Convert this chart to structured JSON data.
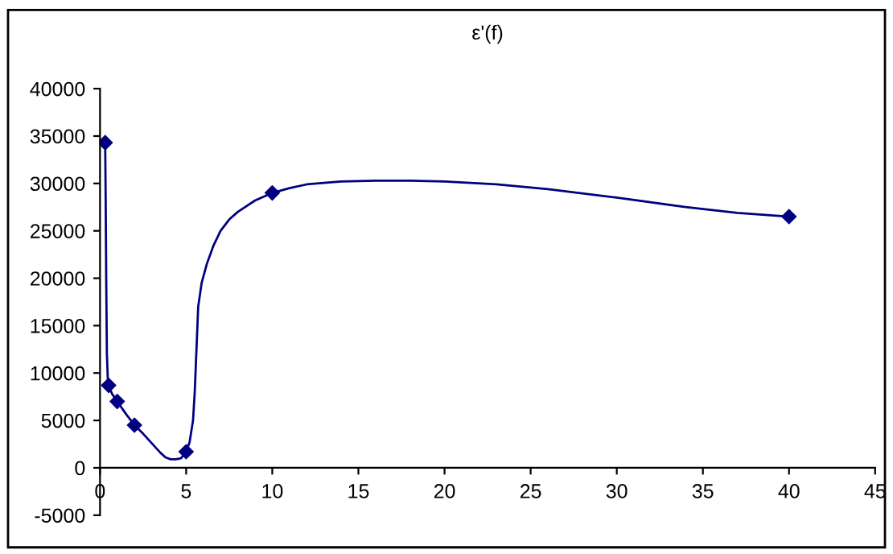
{
  "chart_data": {
    "type": "line",
    "title": "ε'(f)",
    "series": [
      {
        "color": "#000080",
        "marker": "none",
        "x": [
          0.3,
          0.33,
          0.36,
          0.4,
          0.45,
          0.5,
          0.7,
          1,
          1.5,
          2,
          2.5,
          3,
          3.5,
          3.8,
          4.1,
          4.4,
          4.7,
          5,
          5.2,
          5.4,
          5.5,
          5.6,
          5.7,
          5.9,
          6.2,
          6.6,
          7,
          7.5,
          8,
          9,
          10,
          11,
          12,
          14,
          16,
          18,
          20,
          23,
          26,
          30,
          34,
          37,
          40
        ],
        "values": [
          34300,
          28000,
          20000,
          12000,
          9500,
          8700,
          7800,
          7000,
          5700,
          4500,
          3600,
          2600,
          1600,
          1100,
          900,
          900,
          1000,
          1700,
          2700,
          5000,
          8000,
          12500,
          17000,
          19500,
          21500,
          23500,
          25000,
          26200,
          27000,
          28200,
          29000,
          29500,
          29900,
          30200,
          30300,
          30300,
          30200,
          29900,
          29400,
          28500,
          27500,
          26900,
          26500
        ]
      },
      {
        "type": "scatter",
        "color": "#000080",
        "marker": "diamond",
        "x": [
          0.3,
          0.5,
          1,
          2,
          5,
          10,
          40
        ],
        "values": [
          34300,
          8700,
          7000,
          4500,
          1700,
          29000,
          26500
        ]
      }
    ],
    "xlim": [
      0,
      45
    ],
    "xticks": [
      0,
      5,
      10,
      15,
      20,
      25,
      30,
      35,
      40,
      45
    ],
    "ylim": [
      -5000,
      40000
    ],
    "yticks": [
      -5000,
      0,
      5000,
      10000,
      15000,
      20000,
      25000,
      30000,
      35000,
      40000
    ],
    "line_style": "solid",
    "grid": false,
    "legend": false
  }
}
